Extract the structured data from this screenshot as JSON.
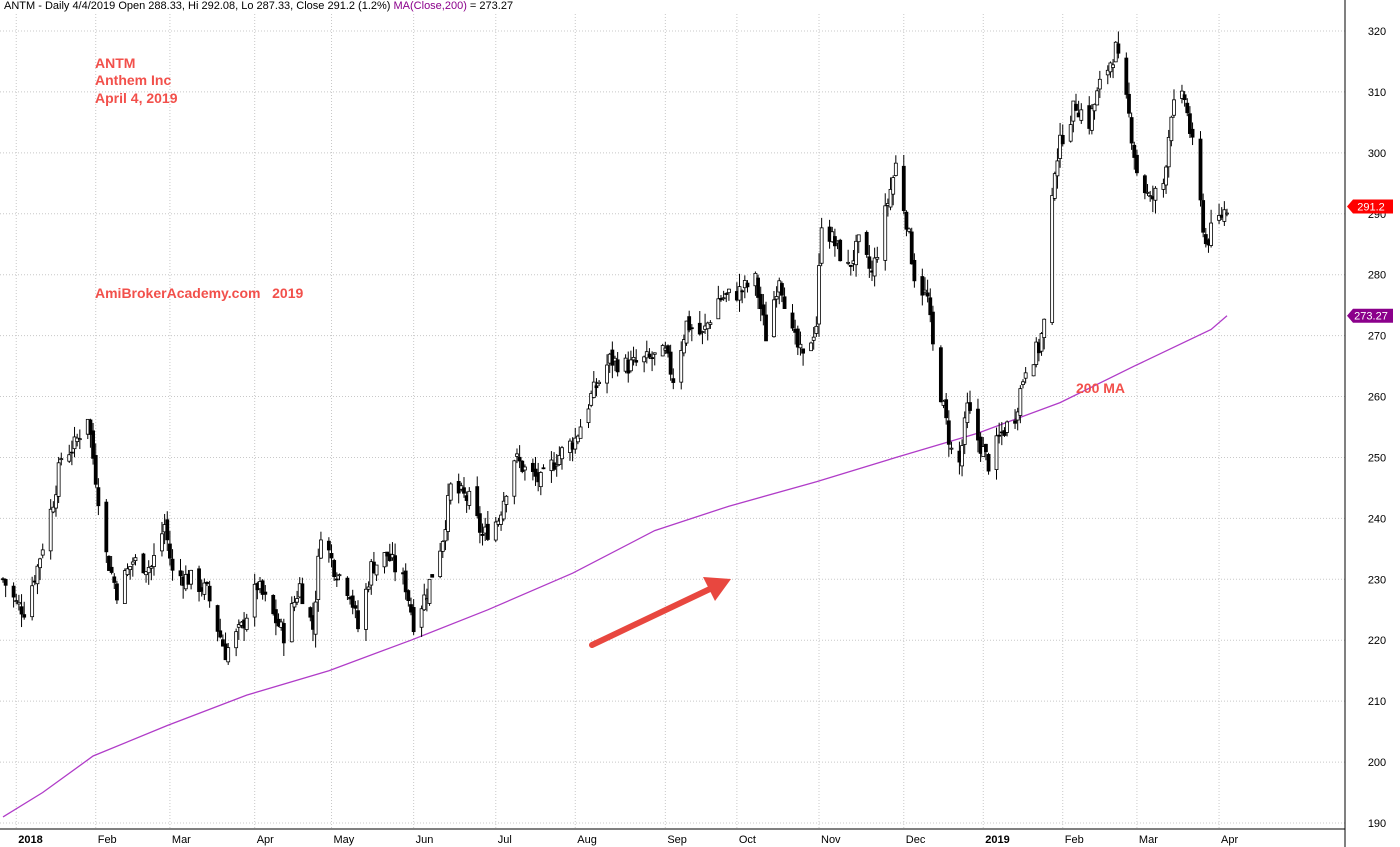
{
  "header": {
    "symbol_info": "ANTM - Daily 4/4/2019 Open 288.33, Hi 292.08, Lo 287.33, Close 291.2 (1.2%)",
    "ma_label": "MA(Close,200)",
    "ma_value_text": " = 273.27"
  },
  "annotations": {
    "ticker": "ANTM",
    "company": "Anthem Inc",
    "date": "April 4, 2019",
    "site": "AmiBrokerAcademy.com   2019",
    "ma_label": "200 MA"
  },
  "colors": {
    "candle": "#000000",
    "ma_line": "#b03cc8",
    "annotation": "#f2504b",
    "arrow": "#e8473f",
    "close_badge": "#ff0000",
    "ma_badge": "#8b008b",
    "grid": "#c8c8c8"
  },
  "chart_data": {
    "type": "candlestick",
    "title": "ANTM - Daily 4/4/2019",
    "ylim": [
      188,
      323
    ],
    "yticks": [
      190,
      200,
      210,
      220,
      230,
      240,
      250,
      260,
      270,
      280,
      290,
      300,
      310,
      320
    ],
    "grid": true,
    "x_ticks": [
      {
        "date": "2018-01-02",
        "label": "2018",
        "bold": true
      },
      {
        "date": "2018-02-01",
        "label": "Feb"
      },
      {
        "date": "2018-03-01",
        "label": "Mar"
      },
      {
        "date": "2018-04-02",
        "label": "Apr"
      },
      {
        "date": "2018-05-01",
        "label": "May"
      },
      {
        "date": "2018-06-01",
        "label": "Jun"
      },
      {
        "date": "2018-07-02",
        "label": "Jul"
      },
      {
        "date": "2018-08-01",
        "label": "Aug"
      },
      {
        "date": "2018-09-04",
        "label": "Sep"
      },
      {
        "date": "2018-10-01",
        "label": "Oct"
      },
      {
        "date": "2018-11-01",
        "label": "Nov"
      },
      {
        "date": "2018-12-03",
        "label": "Dec"
      },
      {
        "date": "2019-01-02",
        "label": "2019",
        "bold": true
      },
      {
        "date": "2019-02-01",
        "label": "Feb"
      },
      {
        "date": "2019-03-01",
        "label": "Mar"
      },
      {
        "date": "2019-04-01",
        "label": "Apr"
      }
    ],
    "price_path": [
      [
        "2017-12-28",
        230
      ],
      [
        "2018-01-02",
        226
      ],
      [
        "2018-01-05",
        225
      ],
      [
        "2018-01-10",
        232
      ],
      [
        "2018-01-16",
        243
      ],
      [
        "2018-01-19",
        250
      ],
      [
        "2018-01-24",
        252
      ],
      [
        "2018-01-29",
        257
      ],
      [
        "2018-01-31",
        250
      ],
      [
        "2018-02-05",
        234
      ],
      [
        "2018-02-09",
        228
      ],
      [
        "2018-02-15",
        233
      ],
      [
        "2018-02-22",
        232
      ],
      [
        "2018-02-27",
        239
      ],
      [
        "2018-03-02",
        231
      ],
      [
        "2018-03-09",
        230
      ],
      [
        "2018-03-15",
        228
      ],
      [
        "2018-03-19",
        222
      ],
      [
        "2018-03-22",
        218
      ],
      [
        "2018-03-28",
        222
      ],
      [
        "2018-04-03",
        229
      ],
      [
        "2018-04-09",
        224
      ],
      [
        "2018-04-13",
        221
      ],
      [
        "2018-04-19",
        229
      ],
      [
        "2018-04-24",
        222
      ],
      [
        "2018-04-27",
        238
      ],
      [
        "2018-05-02",
        232
      ],
      [
        "2018-05-08",
        228
      ],
      [
        "2018-05-11",
        222
      ],
      [
        "2018-05-16",
        232
      ],
      [
        "2018-05-22",
        234
      ],
      [
        "2018-05-29",
        229
      ],
      [
        "2018-06-01",
        223
      ],
      [
        "2018-06-06",
        228
      ],
      [
        "2018-06-12",
        237
      ],
      [
        "2018-06-15",
        245
      ],
      [
        "2018-06-22",
        243
      ],
      [
        "2018-06-27",
        237
      ],
      [
        "2018-07-03",
        240
      ],
      [
        "2018-07-09",
        250
      ],
      [
        "2018-07-13",
        248
      ],
      [
        "2018-07-19",
        246
      ],
      [
        "2018-07-25",
        250
      ],
      [
        "2018-08-01",
        253
      ],
      [
        "2018-08-07",
        260
      ],
      [
        "2018-08-14",
        266
      ],
      [
        "2018-08-21",
        265
      ],
      [
        "2018-08-28",
        266
      ],
      [
        "2018-09-04",
        267
      ],
      [
        "2018-09-07",
        263
      ],
      [
        "2018-09-12",
        272
      ],
      [
        "2018-09-18",
        270
      ],
      [
        "2018-09-24",
        276
      ],
      [
        "2018-10-01",
        277
      ],
      [
        "2018-10-08",
        279
      ],
      [
        "2018-10-12",
        270
      ],
      [
        "2018-10-17",
        280
      ],
      [
        "2018-10-22",
        270
      ],
      [
        "2018-10-26",
        266
      ],
      [
        "2018-10-31",
        272
      ],
      [
        "2018-11-02",
        289
      ],
      [
        "2018-11-07",
        285
      ],
      [
        "2018-11-12",
        281
      ],
      [
        "2018-11-16",
        285
      ],
      [
        "2018-11-21",
        280
      ],
      [
        "2018-11-27",
        292
      ],
      [
        "2018-11-30",
        298
      ],
      [
        "2018-12-04",
        289
      ],
      [
        "2018-12-07",
        280
      ],
      [
        "2018-12-12",
        276
      ],
      [
        "2018-12-14",
        268
      ],
      [
        "2018-12-18",
        258
      ],
      [
        "2018-12-21",
        251
      ],
      [
        "2018-12-24",
        249
      ],
      [
        "2018-12-27",
        258
      ],
      [
        "2018-12-31",
        253
      ],
      [
        "2019-01-04",
        249
      ],
      [
        "2019-01-09",
        254
      ],
      [
        "2019-01-14",
        257
      ],
      [
        "2019-01-18",
        265
      ],
      [
        "2019-01-23",
        268
      ],
      [
        "2019-01-25",
        272
      ],
      [
        "2019-01-29",
        298
      ],
      [
        "2019-02-01",
        303
      ],
      [
        "2019-02-06",
        308
      ],
      [
        "2019-02-11",
        305
      ],
      [
        "2019-02-15",
        311
      ],
      [
        "2019-02-21",
        317
      ],
      [
        "2019-02-26",
        306
      ],
      [
        "2019-03-01",
        297
      ],
      [
        "2019-03-06",
        292
      ],
      [
        "2019-03-11",
        295
      ],
      [
        "2019-03-14",
        307
      ],
      [
        "2019-03-19",
        309
      ],
      [
        "2019-03-22",
        301
      ],
      [
        "2019-03-27",
        285
      ],
      [
        "2019-03-29",
        287
      ],
      [
        "2019-04-04",
        291.2
      ]
    ],
    "ma200": [
      [
        "2017-12-28",
        191
      ],
      [
        "2018-01-12",
        195
      ],
      [
        "2018-01-31",
        201
      ],
      [
        "2018-02-28",
        206
      ],
      [
        "2018-03-30",
        211
      ],
      [
        "2018-04-30",
        215
      ],
      [
        "2018-05-31",
        220
      ],
      [
        "2018-06-29",
        225
      ],
      [
        "2018-07-31",
        231
      ],
      [
        "2018-08-31",
        238
      ],
      [
        "2018-09-28",
        242
      ],
      [
        "2018-10-31",
        246
      ],
      [
        "2018-11-30",
        250
      ],
      [
        "2018-12-31",
        254
      ],
      [
        "2019-01-31",
        259
      ],
      [
        "2019-02-28",
        265
      ],
      [
        "2019-03-29",
        271
      ],
      [
        "2019-04-04",
        273.27
      ]
    ],
    "last_close": 291.2,
    "ma_last": 273.27,
    "close_badge_label": "291.2",
    "ma_badge_label": "273.27"
  }
}
